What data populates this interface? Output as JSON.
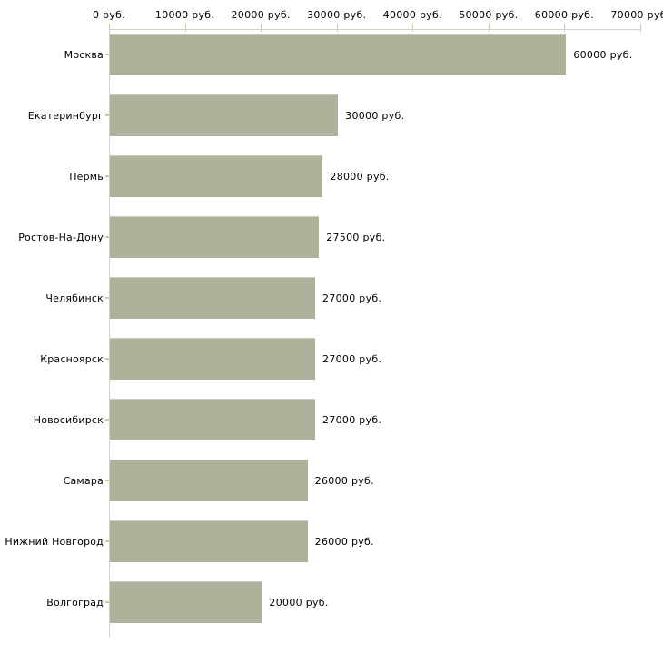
{
  "chart_data": {
    "type": "bar",
    "orientation": "horizontal",
    "title": "",
    "xlabel": "",
    "ylabel": "",
    "unit": "руб.",
    "categories": [
      "Москва",
      "Екатеринбург",
      "Пермь",
      "Ростов-На-Дону",
      "Челябинск",
      "Красноярск",
      "Новосибирск",
      "Самара",
      "Нижний Новгород",
      "Волгоград"
    ],
    "values": [
      60000,
      30000,
      28000,
      27500,
      27000,
      27000,
      27000,
      26000,
      26000,
      20000
    ],
    "value_labels": [
      "60000 руб.",
      "30000 руб.",
      "28000 руб.",
      "27500 руб.",
      "27000 руб.",
      "27000 руб.",
      "27000 руб.",
      "26000 руб.",
      "26000 руб.",
      "20000 руб."
    ],
    "x_ticks": [
      "0 руб.",
      "10000 руб.",
      "20000 руб.",
      "30000 руб.",
      "40000 руб.",
      "50000 руб.",
      "60000 руб.",
      "70000 руб."
    ],
    "x_tick_values": [
      0,
      10000,
      20000,
      30000,
      40000,
      50000,
      60000,
      70000
    ],
    "xlim": [
      0,
      70000
    ],
    "grid": false,
    "legend": false,
    "bar_color": "#adb39a",
    "bar_edge_color": "#c9ccc0",
    "axis_color": "#d2d2cc",
    "tick_color": "#c8cba4",
    "text_color": "#000000",
    "background_color": "#ffffff"
  }
}
